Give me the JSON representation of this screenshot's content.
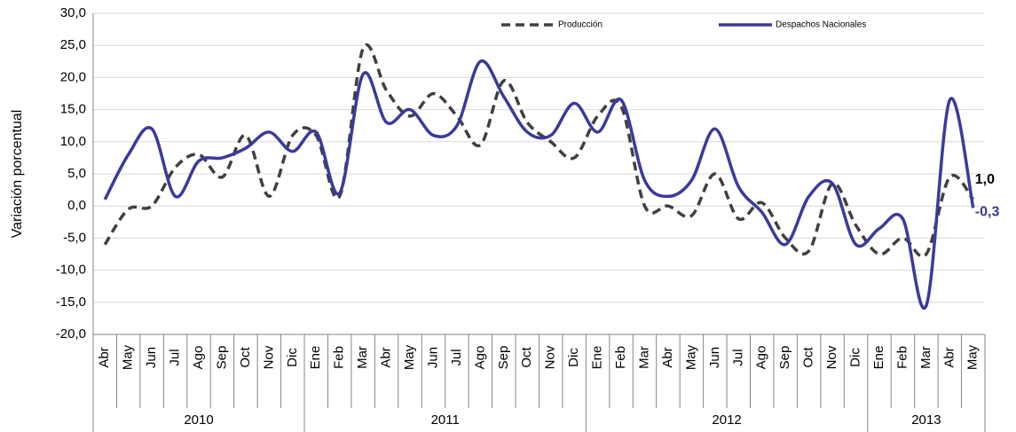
{
  "chart_data": {
    "type": "line",
    "y_label": "Variación porcentual",
    "groups": [
      {
        "label": "2010",
        "categories": [
          "Abr",
          "May",
          "Jun",
          "Jul",
          "Ago",
          "Sep",
          "Oct",
          "Nov",
          "Dic"
        ]
      },
      {
        "label": "2011",
        "categories": [
          "Ene",
          "Feb",
          "Mar",
          "Abr",
          "May",
          "Jun",
          "Jul",
          "Ago",
          "Sep",
          "Oct",
          "Nov",
          "Dic"
        ]
      },
      {
        "label": "2012",
        "categories": [
          "Ene",
          "Feb",
          "Mar",
          "Abr",
          "May",
          "Jun",
          "Jul",
          "Ago",
          "Sep",
          "Oct",
          "Nov",
          "Dic"
        ]
      },
      {
        "label": "2013",
        "categories": [
          "Ene",
          "Feb",
          "Mar",
          "Abr",
          "May"
        ]
      }
    ],
    "series": [
      {
        "name": "Producción",
        "color": "#404040",
        "dashed": true,
        "values": [
          -6,
          -0.5,
          0,
          6,
          8,
          4.5,
          11,
          1.5,
          11,
          11,
          1.5,
          24.5,
          18,
          14,
          17.5,
          14,
          9.5,
          19.5,
          13,
          10,
          7.5,
          14,
          15.5,
          0,
          0,
          -1.5,
          5,
          -2,
          0.5,
          -5,
          -7,
          3.5,
          -3,
          -7.5,
          -5,
          -7.5,
          4.5,
          1.0
        ],
        "value_labels": [
          null,
          null,
          null,
          null,
          null,
          null,
          null,
          null,
          null,
          null,
          null,
          null,
          null,
          null,
          null,
          null,
          null,
          null,
          null,
          null,
          null,
          null,
          null,
          null,
          null,
          null,
          null,
          null,
          null,
          null,
          null,
          null,
          null,
          null,
          null,
          null,
          null,
          "1,0"
        ]
      },
      {
        "name": "Despachos Nacionales",
        "color": "#3a3a9c",
        "dashed": false,
        "values": [
          1,
          8,
          12,
          1.5,
          7,
          7.5,
          9,
          11.5,
          8.5,
          11.5,
          2,
          20.5,
          13,
          15,
          11,
          12.5,
          22.5,
          17,
          11.5,
          11,
          16,
          11.5,
          16.5,
          4,
          1.5,
          4,
          12,
          3,
          -1,
          -6,
          1.5,
          3.5,
          -6,
          -3.5,
          -2,
          -15.5,
          16.5,
          -0.3
        ],
        "value_labels": [
          null,
          null,
          null,
          null,
          null,
          null,
          null,
          null,
          null,
          null,
          null,
          null,
          null,
          null,
          null,
          null,
          null,
          null,
          null,
          null,
          null,
          null,
          null,
          null,
          null,
          null,
          null,
          null,
          null,
          null,
          null,
          null,
          null,
          null,
          null,
          null,
          null,
          "-0,3"
        ]
      }
    ],
    "ylim": [
      -20,
      30
    ],
    "yticks": [
      {
        "value": -20,
        "label": "-20,0"
      },
      {
        "value": -15,
        "label": "-15,0"
      },
      {
        "value": -10,
        "label": "-10,0"
      },
      {
        "value": -5,
        "label": "-5,0"
      },
      {
        "value": 0,
        "label": "0,0"
      },
      {
        "value": 5,
        "label": "5,0"
      },
      {
        "value": 10,
        "label": "10,0"
      },
      {
        "value": 15,
        "label": "15,0"
      },
      {
        "value": 20,
        "label": "20,0"
      },
      {
        "value": 25,
        "label": "25,0"
      },
      {
        "value": 30,
        "label": "30,0"
      }
    ],
    "grid": true,
    "legend": "top"
  }
}
